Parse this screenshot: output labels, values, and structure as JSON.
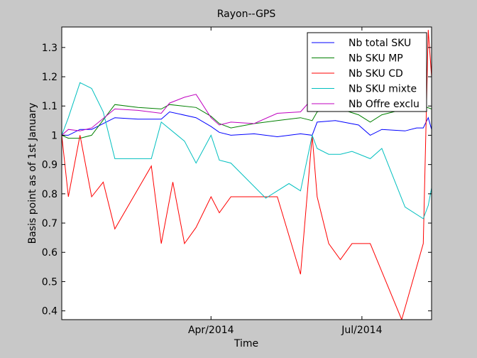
{
  "chart_data": {
    "type": "line",
    "title": "Rayon--GPS",
    "xlabel": "Time",
    "ylabel": "Basis point as of 1st January",
    "xlim": [
      "2014-01-01",
      "2014-08-12"
    ],
    "ylim": [
      0.37,
      1.37
    ],
    "x_ticks": [
      {
        "date": "2014-04-01",
        "label": "Apr/2014"
      },
      {
        "date": "2014-07-01",
        "label": "Jul/2014"
      }
    ],
    "y_ticks": [
      {
        "value": 0.4,
        "label": "0.4"
      },
      {
        "value": 0.5,
        "label": "0.5"
      },
      {
        "value": 0.6,
        "label": "0.6"
      },
      {
        "value": 0.7,
        "label": "0.7"
      },
      {
        "value": 0.8,
        "label": "0.8"
      },
      {
        "value": 0.9,
        "label": "0.9"
      },
      {
        "value": 1.0,
        "label": "1"
      },
      {
        "value": 1.1,
        "label": "1.1"
      },
      {
        "value": 1.2,
        "label": "1.2"
      },
      {
        "value": 1.3,
        "label": "1.3"
      }
    ],
    "grid": false,
    "legend_position": "top-right",
    "series": [
      {
        "name": "Nb total SKU",
        "color": "#0000ff",
        "points": [
          [
            "2014-01-01",
            1.0
          ],
          [
            "2014-01-05",
            1.0
          ],
          [
            "2014-01-12",
            1.02
          ],
          [
            "2014-01-19",
            1.02
          ],
          [
            "2014-02-02",
            1.06
          ],
          [
            "2014-02-16",
            1.055
          ],
          [
            "2014-03-02",
            1.055
          ],
          [
            "2014-03-07",
            1.08
          ],
          [
            "2014-03-23",
            1.06
          ],
          [
            "2014-04-01",
            1.03
          ],
          [
            "2014-04-06",
            1.01
          ],
          [
            "2014-04-13",
            1.0
          ],
          [
            "2014-04-27",
            1.005
          ],
          [
            "2014-05-11",
            0.995
          ],
          [
            "2014-05-25",
            1.005
          ],
          [
            "2014-06-01",
            1.0
          ],
          [
            "2014-06-04",
            1.045
          ],
          [
            "2014-06-15",
            1.05
          ],
          [
            "2014-06-29",
            1.035
          ],
          [
            "2014-07-06",
            1.0
          ],
          [
            "2014-07-13",
            1.02
          ],
          [
            "2014-07-27",
            1.015
          ],
          [
            "2014-08-03",
            1.025
          ],
          [
            "2014-08-07",
            1.025
          ],
          [
            "2014-08-10",
            1.06
          ],
          [
            "2014-08-12",
            1.02
          ]
        ]
      },
      {
        "name": "Nb SKU MP",
        "color": "#008000",
        "points": [
          [
            "2014-01-01",
            1.0
          ],
          [
            "2014-01-05",
            0.99
          ],
          [
            "2014-01-12",
            0.99
          ],
          [
            "2014-01-19",
            1.0
          ],
          [
            "2014-02-02",
            1.105
          ],
          [
            "2014-02-16",
            1.095
          ],
          [
            "2014-03-02",
            1.09
          ],
          [
            "2014-03-07",
            1.105
          ],
          [
            "2014-03-23",
            1.095
          ],
          [
            "2014-04-01",
            1.065
          ],
          [
            "2014-04-06",
            1.04
          ],
          [
            "2014-04-13",
            1.025
          ],
          [
            "2014-04-27",
            1.04
          ],
          [
            "2014-05-11",
            1.05
          ],
          [
            "2014-05-25",
            1.06
          ],
          [
            "2014-06-01",
            1.05
          ],
          [
            "2014-06-04",
            1.08
          ],
          [
            "2014-06-15",
            1.095
          ],
          [
            "2014-06-29",
            1.07
          ],
          [
            "2014-07-06",
            1.045
          ],
          [
            "2014-07-13",
            1.07
          ],
          [
            "2014-07-27",
            1.09
          ],
          [
            "2014-08-03",
            1.095
          ],
          [
            "2014-08-07",
            1.1
          ],
          [
            "2014-08-12",
            1.09
          ]
        ]
      },
      {
        "name": "Nb SKU CD",
        "color": "#ff0000",
        "points": [
          [
            "2014-01-01",
            1.0
          ],
          [
            "2014-01-05",
            0.79
          ],
          [
            "2014-01-12",
            1.0
          ],
          [
            "2014-01-19",
            0.79
          ],
          [
            "2014-01-26",
            0.84
          ],
          [
            "2014-02-02",
            0.68
          ],
          [
            "2014-02-24",
            0.895
          ],
          [
            "2014-03-02",
            0.63
          ],
          [
            "2014-03-09",
            0.84
          ],
          [
            "2014-03-16",
            0.63
          ],
          [
            "2014-03-23",
            0.685
          ],
          [
            "2014-04-01",
            0.79
          ],
          [
            "2014-04-06",
            0.735
          ],
          [
            "2014-04-13",
            0.79
          ],
          [
            "2014-04-27",
            0.79
          ],
          [
            "2014-05-11",
            0.79
          ],
          [
            "2014-05-25",
            0.525
          ],
          [
            "2014-06-01",
            1.0
          ],
          [
            "2014-06-04",
            0.79
          ],
          [
            "2014-06-11",
            0.63
          ],
          [
            "2014-06-18",
            0.575
          ],
          [
            "2014-06-25",
            0.63
          ],
          [
            "2014-07-06",
            0.63
          ],
          [
            "2014-07-25",
            0.37
          ],
          [
            "2014-08-07",
            0.63
          ],
          [
            "2014-08-10",
            1.36
          ],
          [
            "2014-08-12",
            1.2
          ]
        ]
      },
      {
        "name": "Nb SKU mixte",
        "color": "#00bfbf",
        "points": [
          [
            "2014-01-01",
            1.0
          ],
          [
            "2014-01-05",
            1.06
          ],
          [
            "2014-01-12",
            1.18
          ],
          [
            "2014-01-19",
            1.16
          ],
          [
            "2014-01-26",
            1.08
          ],
          [
            "2014-02-02",
            0.92
          ],
          [
            "2014-02-16",
            0.92
          ],
          [
            "2014-02-24",
            0.92
          ],
          [
            "2014-03-02",
            1.045
          ],
          [
            "2014-03-16",
            0.98
          ],
          [
            "2014-03-23",
            0.905
          ],
          [
            "2014-04-01",
            1.0
          ],
          [
            "2014-04-06",
            0.915
          ],
          [
            "2014-04-13",
            0.905
          ],
          [
            "2014-05-04",
            0.785
          ],
          [
            "2014-05-11",
            0.81
          ],
          [
            "2014-05-18",
            0.835
          ],
          [
            "2014-05-25",
            0.81
          ],
          [
            "2014-06-01",
            1.0
          ],
          [
            "2014-06-04",
            0.955
          ],
          [
            "2014-06-11",
            0.935
          ],
          [
            "2014-06-18",
            0.935
          ],
          [
            "2014-06-25",
            0.945
          ],
          [
            "2014-07-06",
            0.92
          ],
          [
            "2014-07-13",
            0.955
          ],
          [
            "2014-07-27",
            0.755
          ],
          [
            "2014-08-07",
            0.715
          ],
          [
            "2014-08-10",
            0.76
          ],
          [
            "2014-08-12",
            0.82
          ]
        ]
      },
      {
        "name": "Nb Offre exclu",
        "color": "#bf00bf",
        "points": [
          [
            "2014-01-01",
            1.0
          ],
          [
            "2014-01-05",
            1.02
          ],
          [
            "2014-01-12",
            1.015
          ],
          [
            "2014-01-19",
            1.025
          ],
          [
            "2014-02-02",
            1.09
          ],
          [
            "2014-02-16",
            1.085
          ],
          [
            "2014-03-02",
            1.075
          ],
          [
            "2014-03-07",
            1.11
          ],
          [
            "2014-03-16",
            1.13
          ],
          [
            "2014-03-23",
            1.14
          ],
          [
            "2014-04-01",
            1.06
          ],
          [
            "2014-04-06",
            1.035
          ],
          [
            "2014-04-13",
            1.045
          ],
          [
            "2014-04-27",
            1.04
          ],
          [
            "2014-05-11",
            1.075
          ],
          [
            "2014-05-25",
            1.08
          ],
          [
            "2014-06-01",
            1.125
          ],
          [
            "2014-06-04",
            1.155
          ],
          [
            "2014-06-11",
            1.12
          ],
          [
            "2014-06-15",
            1.105
          ]
        ]
      }
    ]
  }
}
